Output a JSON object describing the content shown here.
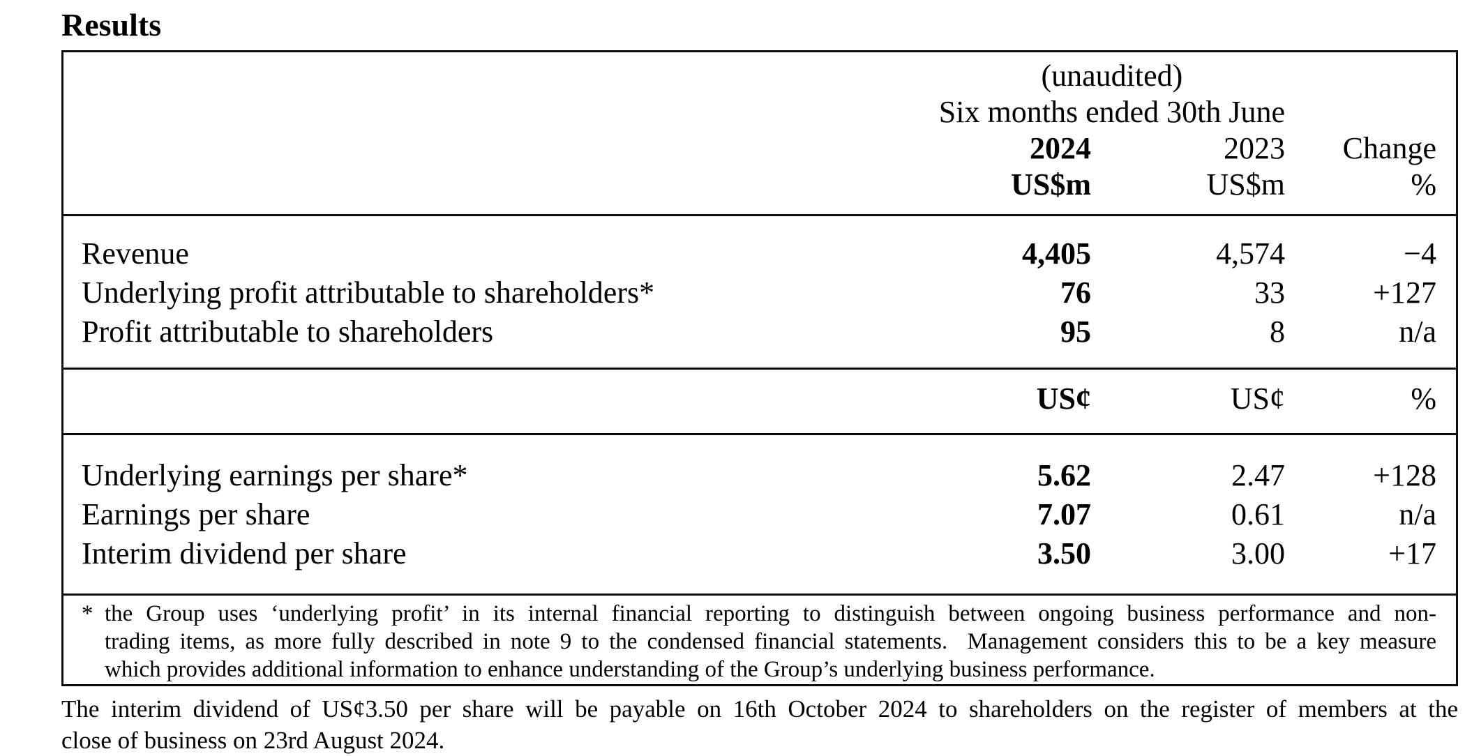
{
  "page": {
    "title": "Results"
  },
  "table": {
    "header": {
      "unaudited": "(unaudited)",
      "period": "Six months ended 30th June",
      "col_2024": "2024",
      "col_2023": "2023",
      "col_change": "Change",
      "unit_2024": "US$m",
      "unit_2023": "US$m",
      "unit_change": "%"
    },
    "money_rows": [
      {
        "label": "Revenue",
        "y2024": "4,405",
        "y2023": "4,574",
        "change": "−4"
      },
      {
        "label": "Underlying profit attributable to shareholders*",
        "y2024": "76",
        "y2023": "33",
        "change": "+127"
      },
      {
        "label": "Profit attributable to shareholders",
        "y2024": "95",
        "y2023": "8",
        "change": "n/a"
      }
    ],
    "unit_row": {
      "u2024": "US¢",
      "u2023": "US¢",
      "uchange": "%"
    },
    "per_share_rows": [
      {
        "label": "Underlying earnings per share*",
        "y2024": "5.62",
        "y2023": "2.47",
        "change": "+128"
      },
      {
        "label": "Earnings per share",
        "y2024": "7.07",
        "y2023": "0.61",
        "change": "n/a"
      },
      {
        "label": "Interim dividend per share",
        "y2024": "3.50",
        "y2023": "3.00",
        "change": "+17"
      }
    ],
    "footnote": {
      "marker": "*",
      "line1": "the Group uses ‘underlying profit’ in its internal financial reporting to distinguish between ongoing business performance and non-",
      "line2": "trading items, as more fully described in note 9 to the condensed financial statements.  Management considers this to be a key measure",
      "line3": "which provides additional information to enhance understanding of the Group’s underlying business performance."
    }
  },
  "paragraph": {
    "line1": "The interim dividend of US¢3.50 per share will be payable on 16th October 2024 to shareholders on the register of members at the",
    "line2": "close of business on 23rd August 2024."
  }
}
